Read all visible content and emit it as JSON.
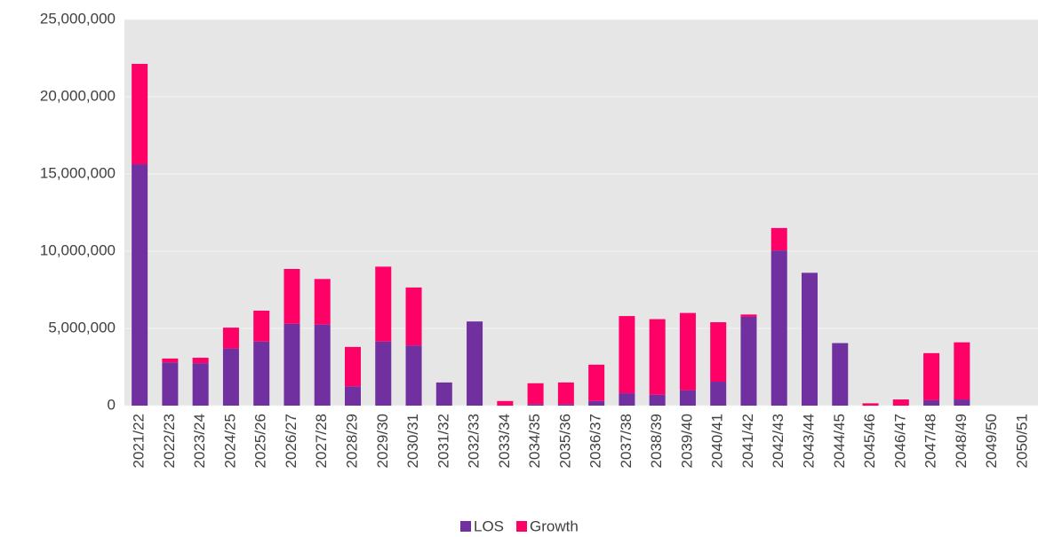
{
  "chart_data": {
    "type": "stacked_bar",
    "categories": [
      "2021/22",
      "2022/23",
      "2023/24",
      "2024/25",
      "2025/26",
      "2026/27",
      "2027/28",
      "2028/29",
      "2029/30",
      "2030/31",
      "2031/32",
      "2032/33",
      "2033/34",
      "2034/35",
      "2035/36",
      "2036/37",
      "2037/38",
      "2038/39",
      "2039/40",
      "2040/41",
      "2041/42",
      "2042/43",
      "2043/44",
      "2044/45",
      "2045/46",
      "2046/47",
      "2047/48",
      "2048/49",
      "2049/50",
      "2050/51"
    ],
    "series": [
      {
        "name": "LOS",
        "color": "#7030a0",
        "values": [
          15630000,
          2800000,
          2750000,
          3700000,
          4150000,
          5300000,
          5250000,
          1250000,
          4150000,
          3900000,
          1500000,
          5450000,
          0,
          100000,
          100000,
          300000,
          800000,
          700000,
          1000000,
          1550000,
          5750000,
          10050000,
          8600000,
          4050000,
          0,
          0,
          350000,
          400000,
          0,
          0
        ]
      },
      {
        "name": "Growth",
        "color": "#ff0066",
        "values": [
          6500000,
          250000,
          350000,
          1350000,
          2000000,
          3550000,
          2950000,
          2550000,
          4850000,
          3750000,
          0,
          0,
          300000,
          1350000,
          1400000,
          2350000,
          5000000,
          4900000,
          5000000,
          3850000,
          150000,
          1450000,
          0,
          0,
          150000,
          400000,
          3050000,
          3700000,
          0,
          0
        ]
      }
    ],
    "ylim": [
      0,
      25000000
    ],
    "yticks": [
      0,
      {
        "value": 5000000,
        "label": "5,000,000"
      },
      {
        "value": 10000000,
        "label": "10,000,000"
      },
      {
        "value": 15000000,
        "label": "15,000,000"
      },
      {
        "value": 20000000,
        "label": "20,000,000"
      },
      {
        "value": 25000000,
        "label": "25,000,000"
      }
    ],
    "grid": true,
    "legend": "bottom"
  }
}
